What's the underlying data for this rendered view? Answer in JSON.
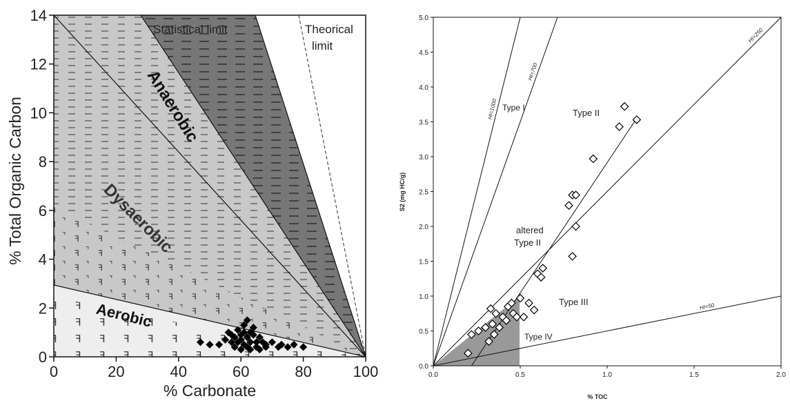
{
  "chart_data": [
    {
      "type": "scatter",
      "title": "",
      "xlabel": "% Carbonate",
      "ylabel": "% Total Organic Carbon",
      "xlim": [
        0,
        100
      ],
      "ylim": [
        0,
        14
      ],
      "x_ticks": [
        "0",
        "20",
        "40",
        "60",
        "80",
        "100"
      ],
      "y_ticks": [
        "0",
        "2",
        "4",
        "6",
        "8",
        "10",
        "12",
        "14"
      ],
      "limit_lines": [
        "Statistical limit",
        "Theorical limit"
      ],
      "zones": [
        {
          "name": "Anaerobic",
          "color": "#777777"
        },
        {
          "name": "Dysaerobic",
          "color": "#c8c8c8"
        },
        {
          "name": "Aerobic",
          "color": "#eeeeee"
        }
      ],
      "series": [
        {
          "marker": "diamond",
          "x": [
            47,
            50,
            53,
            55,
            56,
            57,
            57,
            58,
            58,
            59,
            59,
            60,
            60,
            60,
            61,
            61,
            61,
            62,
            62,
            62,
            63,
            63,
            63,
            64,
            64,
            65,
            65,
            66,
            66,
            67,
            68,
            68,
            70,
            72,
            73,
            75,
            77,
            80
          ],
          "y": [
            0.6,
            0.5,
            0.5,
            0.7,
            1.0,
            0.6,
            0.9,
            0.8,
            0.4,
            1.1,
            0.6,
            0.9,
            0.3,
            0.7,
            1.0,
            0.5,
            1.3,
            0.8,
            0.4,
            1.5,
            0.6,
            1.0,
            0.3,
            0.9,
            1.2,
            0.6,
            0.4,
            0.8,
            0.3,
            0.6,
            0.5,
            0.4,
            0.6,
            0.4,
            0.5,
            0.4,
            0.5,
            0.4
          ]
        }
      ]
    },
    {
      "type": "scatter",
      "title": "",
      "xlabel": "% TOC",
      "ylabel": "S2 (mg HC/g)",
      "xlim": [
        0,
        2.0
      ],
      "ylim": [
        0,
        5.0
      ],
      "x_ticks": [
        "0.0",
        "0.5",
        "1.0",
        "1.5",
        "2.0"
      ],
      "y_ticks": [
        "0.0",
        "0.5",
        "1.0",
        "1.5",
        "2.0",
        "2.5",
        "3.0",
        "3.5",
        "4.0",
        "4.5",
        "5.0"
      ],
      "hi_lines": [
        {
          "label": "HI=1000",
          "slope": 10
        },
        {
          "label": "HI=700",
          "slope": 7
        },
        {
          "label": "HI=250",
          "slope": 2.5
        },
        {
          "label": "HI=50",
          "slope": 0.5
        }
      ],
      "regression_line": {
        "x": [
          0.22,
          1.17
        ],
        "y": [
          0.0,
          3.55
        ]
      },
      "shaded_region": {
        "color": "#999999"
      },
      "region_labels": [
        "Type I",
        "Type II",
        "altered Type II",
        "Type III",
        "Type IV"
      ],
      "series": [
        {
          "marker": "open-diamond",
          "x": [
            0.2,
            0.22,
            0.26,
            0.3,
            0.32,
            0.33,
            0.34,
            0.35,
            0.36,
            0.38,
            0.4,
            0.42,
            0.43,
            0.45,
            0.46,
            0.48,
            0.5,
            0.52,
            0.55,
            0.58,
            0.6,
            0.62,
            0.63,
            0.78,
            0.8,
            0.8,
            0.82,
            0.82,
            0.92,
            1.07,
            1.1,
            1.17
          ],
          "y": [
            0.18,
            0.45,
            0.5,
            0.55,
            0.35,
            0.82,
            0.6,
            0.45,
            0.75,
            0.55,
            0.7,
            0.65,
            0.85,
            0.9,
            0.75,
            0.7,
            0.97,
            0.7,
            0.9,
            0.8,
            1.32,
            1.27,
            1.4,
            2.3,
            1.57,
            2.45,
            2.0,
            2.45,
            2.97,
            3.43,
            3.72,
            3.53
          ]
        }
      ]
    }
  ]
}
